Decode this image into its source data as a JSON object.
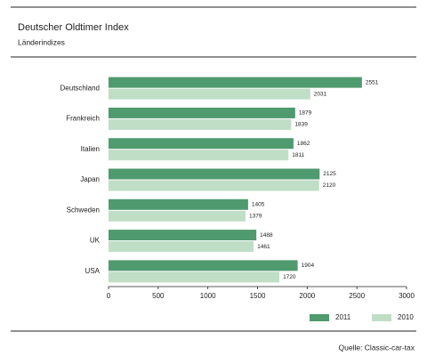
{
  "chart_data": {
    "type": "bar",
    "orientation": "horizontal",
    "title": "Deutscher Oldtimer Index",
    "subtitle": "Länderindizes",
    "categories": [
      "Deutschland",
      "Frankreich",
      "Italien",
      "Japan",
      "Schweden",
      "UK",
      "USA"
    ],
    "series": [
      {
        "name": "2011",
        "color": "#4f9a6e",
        "values": [
          2551,
          1879,
          1862,
          2125,
          1405,
          1488,
          1904
        ]
      },
      {
        "name": "2010",
        "color": "#c0dec6",
        "values": [
          2031,
          1839,
          1811,
          2120,
          1379,
          1461,
          1720
        ]
      }
    ],
    "xlim": [
      0,
      3000
    ],
    "xticks": [
      0,
      500,
      1000,
      1500,
      2000,
      2500,
      3000
    ],
    "grid": false,
    "legend": "bottom-right",
    "source": "Quelle: Classic-car-tax"
  }
}
